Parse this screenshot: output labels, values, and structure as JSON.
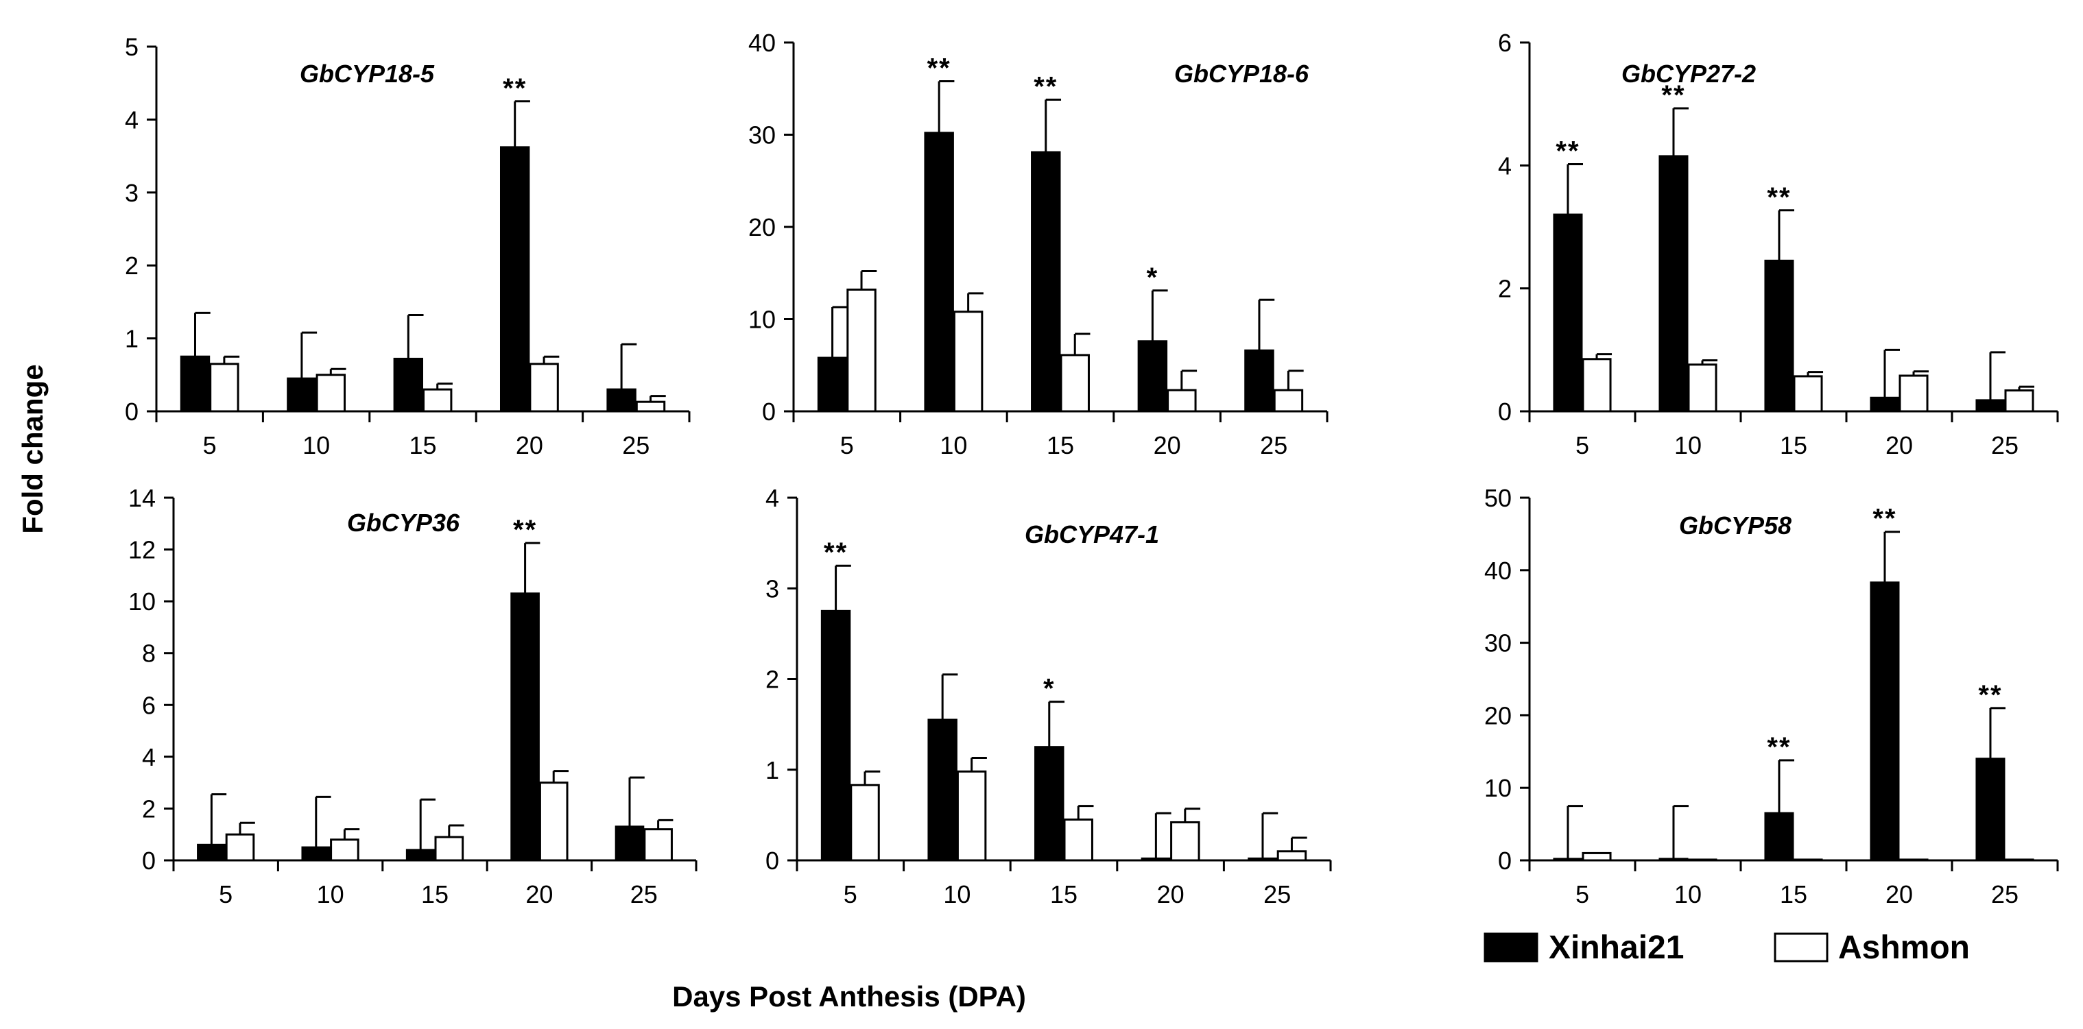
{
  "figure": {
    "ylabel": "Fold change",
    "xlabel": "Days Post Anthesis (DPA)",
    "legend": [
      {
        "name": "Xinhai21",
        "color": "#000000"
      },
      {
        "name": "Ashmon",
        "color": "#ffffff"
      }
    ]
  },
  "chart_data": [
    {
      "type": "bar",
      "title": "GbCYP18-5",
      "categories": [
        "5",
        "10",
        "15",
        "20",
        "25"
      ],
      "ylim": [
        0,
        5
      ],
      "yticks": [
        "0",
        "1",
        "2",
        "3",
        "4",
        "5"
      ],
      "series": [
        {
          "name": "Xinhai21",
          "values": [
            0.75,
            0.45,
            0.72,
            3.62,
            0.3
          ],
          "errors": [
            0.6,
            0.63,
            0.6,
            0.63,
            0.62
          ]
        },
        {
          "name": "Ashmon",
          "values": [
            0.65,
            0.5,
            0.3,
            0.65,
            0.13
          ],
          "errors": [
            0.1,
            0.08,
            0.08,
            0.1,
            0.08
          ]
        }
      ],
      "significance": [
        "",
        "",
        "",
        "**",
        ""
      ]
    },
    {
      "type": "bar",
      "title": "GbCYP18-6",
      "categories": [
        "5",
        "10",
        "15",
        "20",
        "25"
      ],
      "ylim": [
        0,
        40
      ],
      "yticks": [
        "0",
        "10",
        "20",
        "30",
        "40"
      ],
      "series": [
        {
          "name": "Xinhai21",
          "values": [
            5.8,
            30.2,
            28.1,
            7.6,
            6.6
          ],
          "errors": [
            5.5,
            5.6,
            5.7,
            5.5,
            5.5
          ]
        },
        {
          "name": "Ashmon",
          "values": [
            13.2,
            10.8,
            6.1,
            2.3,
            2.3
          ],
          "errors": [
            2.0,
            2.0,
            2.3,
            2.1,
            2.1
          ]
        }
      ],
      "significance": [
        "",
        "**",
        "**",
        "*",
        ""
      ]
    },
    {
      "type": "bar",
      "title": "GbCYP27-2",
      "categories": [
        "5",
        "10",
        "15",
        "20",
        "25"
      ],
      "ylim": [
        0,
        6
      ],
      "yticks": [
        "0",
        "2",
        "4",
        "6"
      ],
      "series": [
        {
          "name": "Xinhai21",
          "values": [
            3.2,
            4.15,
            2.45,
            0.22,
            0.18
          ],
          "errors": [
            0.82,
            0.78,
            0.82,
            0.78,
            0.78
          ]
        },
        {
          "name": "Ashmon",
          "values": [
            0.85,
            0.76,
            0.57,
            0.58,
            0.34
          ],
          "errors": [
            0.08,
            0.07,
            0.07,
            0.07,
            0.06
          ]
        }
      ],
      "significance": [
        "**",
        "**",
        "**",
        "",
        ""
      ]
    },
    {
      "type": "bar",
      "title": "GbCYP36",
      "categories": [
        "5",
        "10",
        "15",
        "20",
        "25"
      ],
      "ylim": [
        0,
        14
      ],
      "yticks": [
        "0",
        "2",
        "4",
        "6",
        "8",
        "10",
        "12",
        "14"
      ],
      "series": [
        {
          "name": "Xinhai21",
          "values": [
            0.6,
            0.5,
            0.4,
            10.3,
            1.3
          ],
          "errors": [
            1.95,
            1.95,
            1.95,
            1.95,
            1.9
          ]
        },
        {
          "name": "Ashmon",
          "values": [
            1.0,
            0.8,
            0.9,
            3.0,
            1.2
          ],
          "errors": [
            0.45,
            0.4,
            0.45,
            0.45,
            0.35
          ]
        }
      ],
      "significance": [
        "",
        "",
        "",
        "**",
        ""
      ]
    },
    {
      "type": "bar",
      "title": "GbCYP47-1",
      "categories": [
        "5",
        "10",
        "15",
        "20",
        "25"
      ],
      "ylim": [
        0,
        4
      ],
      "yticks": [
        "0",
        "1",
        "2",
        "3",
        "4"
      ],
      "series": [
        {
          "name": "Xinhai21",
          "values": [
            2.75,
            1.55,
            1.25,
            0.02,
            0.02
          ],
          "errors": [
            0.5,
            0.5,
            0.5,
            0.5,
            0.5
          ]
        },
        {
          "name": "Ashmon",
          "values": [
            0.83,
            0.98,
            0.45,
            0.42,
            0.1
          ],
          "errors": [
            0.15,
            0.15,
            0.15,
            0.15,
            0.15
          ]
        }
      ],
      "significance": [
        "**",
        "",
        "*",
        "",
        ""
      ]
    },
    {
      "type": "bar",
      "title": "GbCYP58",
      "categories": [
        "5",
        "10",
        "15",
        "20",
        "25"
      ],
      "ylim": [
        0,
        50
      ],
      "yticks": [
        "0",
        "10",
        "20",
        "30",
        "40",
        "50"
      ],
      "series": [
        {
          "name": "Xinhai21",
          "values": [
            0.2,
            0.2,
            6.5,
            38.3,
            14.0
          ],
          "errors": [
            7.3,
            7.3,
            7.3,
            7.0,
            7.0
          ]
        },
        {
          "name": "Ashmon",
          "values": [
            1.0,
            0.1,
            0.1,
            0.1,
            0.1
          ],
          "errors": [
            0.0,
            0.0,
            0.0,
            0.0,
            0.0
          ]
        }
      ],
      "significance": [
        "",
        "",
        "**",
        "**",
        "**"
      ]
    }
  ]
}
